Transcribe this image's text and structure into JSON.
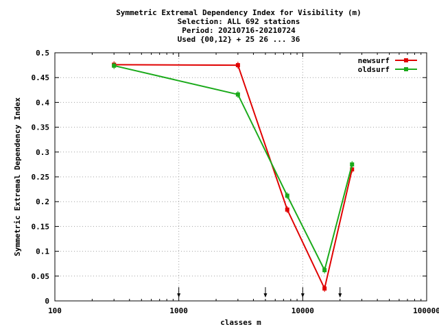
{
  "chart_data": {
    "type": "line",
    "title_lines": [
      "Symmetric Extremal Dependency Index  for Visibility (m)",
      "Selection: ALL    692 stations",
      "Period: 20210716-20210724",
      "Used {00,12} + 25 26 ... 36"
    ],
    "xlabel": "classes m",
    "ylabel": "Symmetric Extremal Dependency Index",
    "x_scale": "log",
    "xlim": [
      100,
      100000
    ],
    "ylim": [
      0,
      0.5
    ],
    "x_ticks": [
      100,
      1000,
      10000,
      100000
    ],
    "x_tick_labels": [
      "100",
      "1000",
      "10000",
      "100000"
    ],
    "y_ticks": [
      0,
      0.05,
      0.1,
      0.15,
      0.2,
      0.25,
      0.3,
      0.35,
      0.4,
      0.45,
      0.5
    ],
    "y_tick_labels": [
      "0",
      "0.05",
      "0.1",
      "0.15",
      "0.2",
      "0.25",
      "0.3",
      "0.35",
      "0.4",
      "0.45",
      "0.5"
    ],
    "grid": true,
    "legend_position": "top-right",
    "threshold_arrows_x": [
      1000,
      5000,
      10000,
      20000
    ],
    "series": [
      {
        "name": "newsurf",
        "color": "#e00000",
        "x": [
          300,
          3000,
          7500,
          15000,
          25000
        ],
        "y": [
          0.476,
          0.475,
          0.184,
          0.025,
          0.265
        ]
      },
      {
        "name": "oldsurf",
        "color": "#1aaa1a",
        "x": [
          300,
          3000,
          7500,
          15000,
          25000
        ],
        "y": [
          0.474,
          0.416,
          0.212,
          0.062,
          0.275
        ]
      }
    ]
  }
}
